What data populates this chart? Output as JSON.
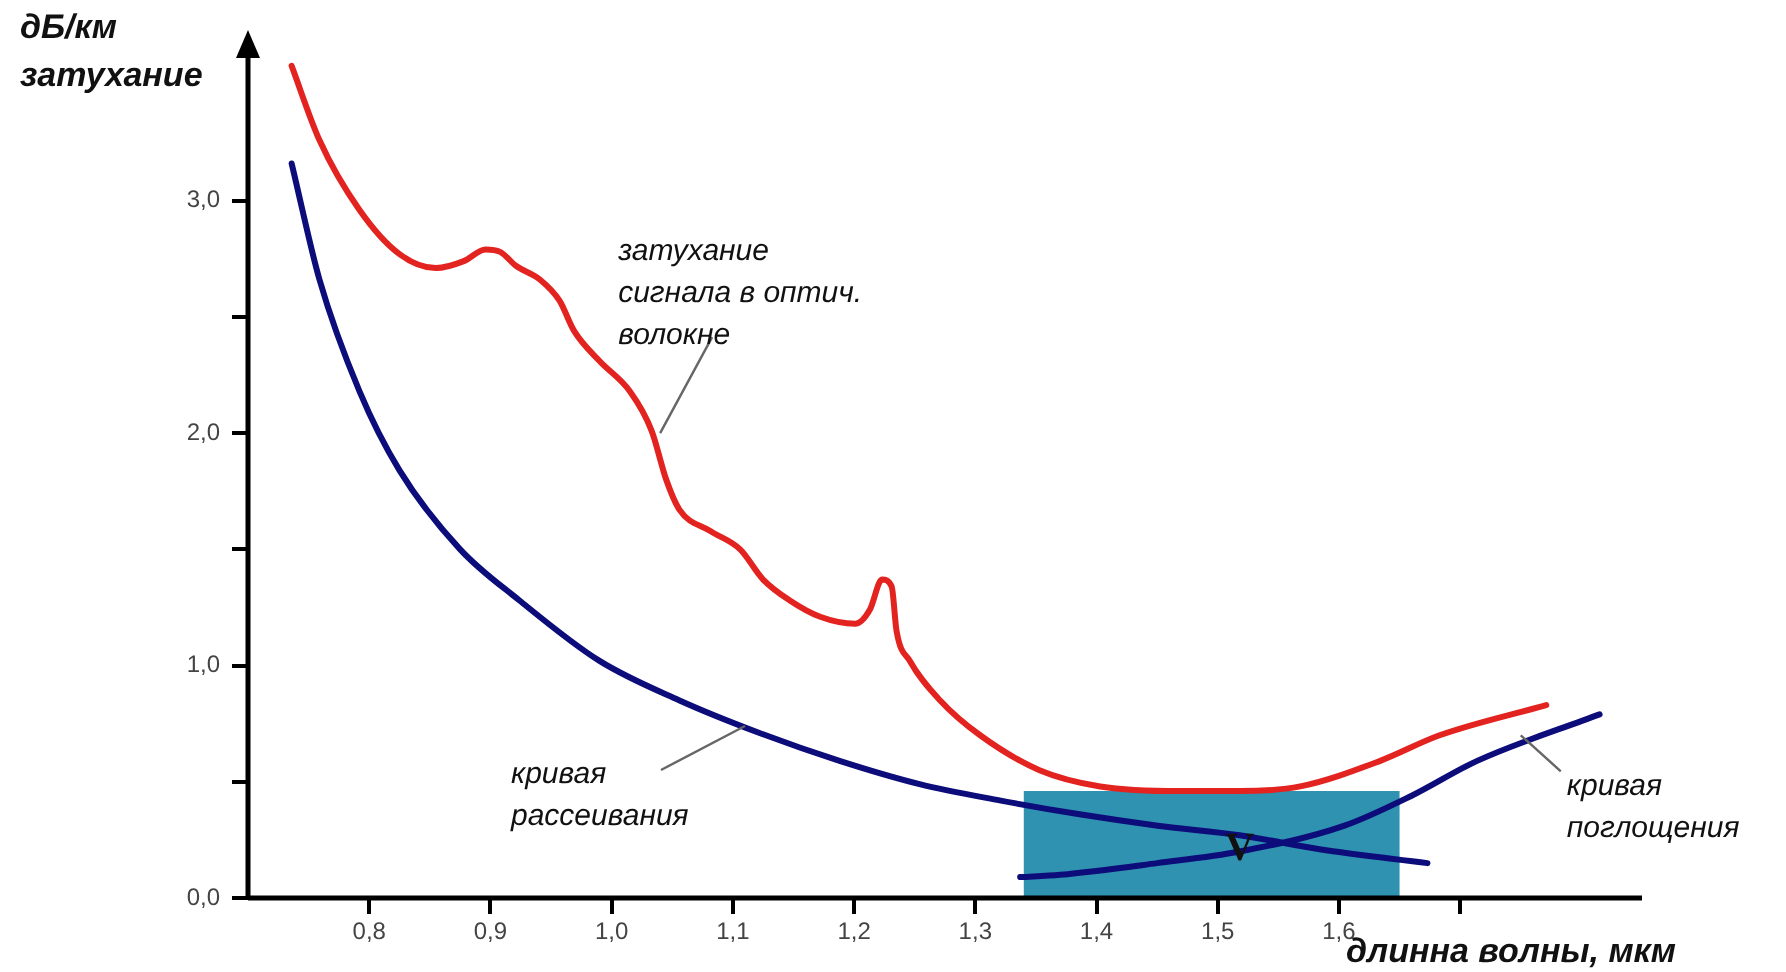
{
  "chart_data": {
    "type": "line",
    "ylabel": "дБ/км\nзатухание",
    "xlabel": "длинна волны, мкм",
    "xlim": [
      0.7,
      1.85
    ],
    "ylim": [
      0,
      3.7
    ],
    "xticks": [
      {
        "value": 0.8,
        "label": "0,8"
      },
      {
        "value": 0.9,
        "label": "0,9"
      },
      {
        "value": 1.0,
        "label": "1,0"
      },
      {
        "value": 1.1,
        "label": "1,1"
      },
      {
        "value": 1.2,
        "label": "1,2"
      },
      {
        "value": 1.3,
        "label": "1,3"
      },
      {
        "value": 1.4,
        "label": "1,4"
      },
      {
        "value": 1.5,
        "label": "1,5"
      },
      {
        "value": 1.6,
        "label": "1,6"
      },
      {
        "value": 1.7,
        "label": null
      }
    ],
    "yticks": [
      {
        "value": 0,
        "label": "0,0"
      },
      {
        "value": 0.5,
        "label": null
      },
      {
        "value": 1,
        "label": "1,0"
      },
      {
        "value": 1.5,
        "label": null
      },
      {
        "value": 2,
        "label": "2,0"
      },
      {
        "value": 2.5,
        "label": null
      },
      {
        "value": 3,
        "label": "3,0"
      }
    ],
    "grid": false,
    "legend": false,
    "marker": "none",
    "line_style": "solid",
    "series": [
      {
        "color": "#e3231f",
        "x": [
          0.736,
          0.759,
          0.792,
          0.825,
          0.855,
          0.878,
          0.896,
          0.908,
          0.921,
          0.941,
          0.957,
          0.969,
          0.99,
          1.015,
          1.033,
          1.045,
          1.056,
          1.081,
          1.106,
          1.125,
          1.147,
          1.172,
          1.201,
          1.213,
          1.223,
          1.231,
          1.235,
          1.246,
          1.271,
          1.304,
          1.353,
          1.403,
          1.469,
          1.518,
          1.568,
          1.634,
          1.683,
          1.771
        ],
        "values": [
          3.58,
          3.26,
          2.96,
          2.77,
          2.71,
          2.74,
          2.79,
          2.78,
          2.72,
          2.66,
          2.57,
          2.44,
          2.31,
          2.18,
          2.01,
          1.8,
          1.67,
          1.58,
          1.5,
          1.37,
          1.28,
          1.21,
          1.18,
          1.24,
          1.37,
          1.34,
          1.15,
          1.02,
          0.85,
          0.7,
          0.55,
          0.48,
          0.46,
          0.46,
          0.48,
          0.59,
          0.7,
          0.83
        ]
      },
      {
        "color": "#0c0c7a",
        "x": [
          0.736,
          0.759,
          0.792,
          0.825,
          0.875,
          0.924,
          0.99,
          1.056,
          1.122,
          1.188,
          1.254,
          1.32,
          1.386,
          1.452,
          1.518,
          1.584,
          1.673
        ],
        "values": [
          3.16,
          2.66,
          2.18,
          1.84,
          1.5,
          1.28,
          1.02,
          0.85,
          0.71,
          0.59,
          0.49,
          0.42,
          0.36,
          0.31,
          0.27,
          0.21,
          0.15
        ]
      },
      {
        "color": "#0c0c7a",
        "x": [
          1.337,
          1.37,
          1.45,
          1.518,
          1.604,
          1.66,
          1.714,
          1.815
        ],
        "values": [
          0.09,
          0.1,
          0.15,
          0.2,
          0.31,
          0.44,
          0.59,
          0.79
        ]
      }
    ],
    "bands": [
      {
        "axis": "x",
        "from": 1.34,
        "to": 1.65,
        "label": "V",
        "color": "#1a86a8"
      }
    ],
    "annotations": [
      {
        "text": "затухание\nсигнала в оптич.\nволокне",
        "x": 1.04,
        "y": 2.0
      },
      {
        "text": "кривая\nрассеивания",
        "x": 1.11,
        "y": 0.74
      },
      {
        "text": "кривая\nпоглощения",
        "x": 1.75,
        "y": 0.7
      }
    ]
  }
}
